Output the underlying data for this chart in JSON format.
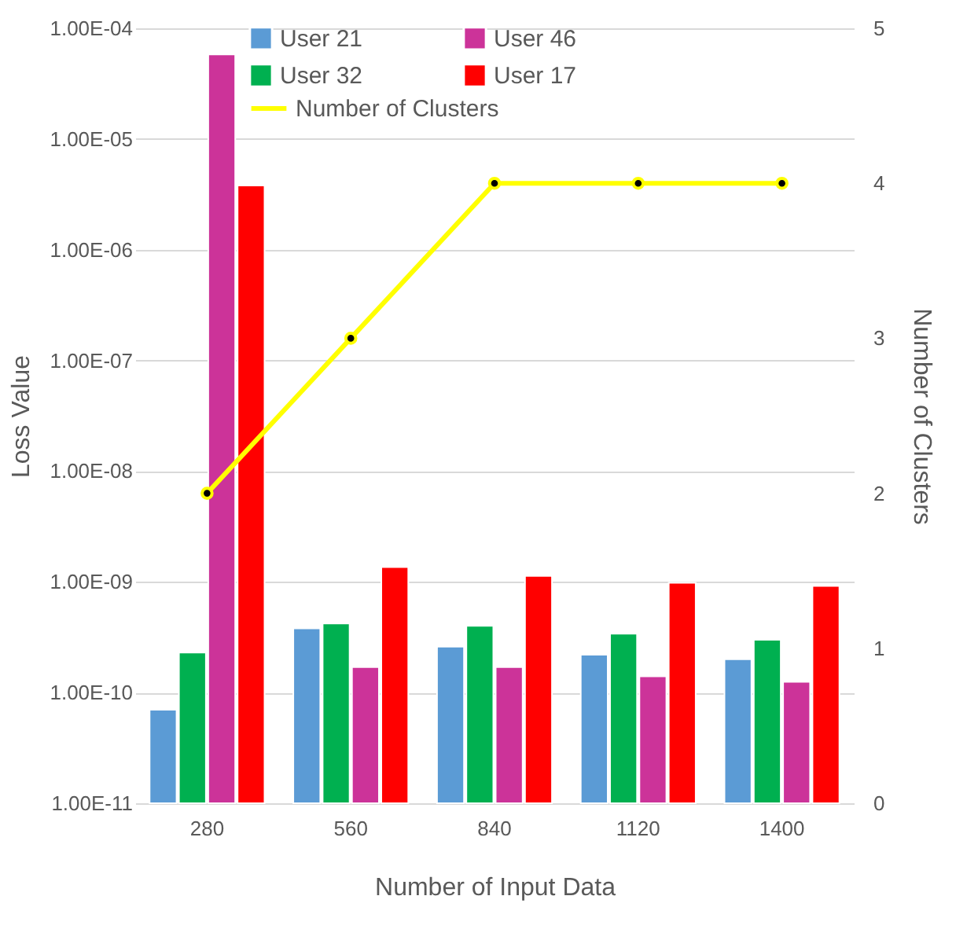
{
  "chart_data": {
    "type": "bar",
    "xlabel": "Number of Input Data",
    "ylabel": "Loss Value",
    "y2label": "Number of Clusters",
    "categories": [
      "280",
      "560",
      "840",
      "1120",
      "1400"
    ],
    "series": [
      {
        "name": "User 21",
        "color": "#5b9bd5",
        "values": [
          7e-11,
          3.8e-10,
          2.6e-10,
          2.2e-10,
          2e-10
        ]
      },
      {
        "name": "User 32",
        "color": "#00b050",
        "values": [
          2.3e-10,
          4.2e-10,
          4e-10,
          3.4e-10,
          3e-10
        ]
      },
      {
        "name": "User 46",
        "color": "#cc3399",
        "values": [
          5.8e-05,
          1.7e-10,
          1.7e-10,
          1.4e-10,
          1.25e-10
        ]
      },
      {
        "name": "User 17",
        "color": "#ff0000",
        "values": [
          3.8e-06,
          1.36e-09,
          1.13e-09,
          9.8e-10,
          9.2e-10
        ]
      },
      {
        "name": "Number of Clusters",
        "type": "line",
        "axis": "y2",
        "color": "#ffff00",
        "marker": "circle",
        "values": [
          2,
          3,
          4,
          4,
          4
        ]
      }
    ],
    "log": "y",
    "ylim": [
      1e-11,
      0.0001
    ],
    "yticks": [
      {
        "value": 1e-11,
        "label": "1.00E-11"
      },
      {
        "value": 1e-10,
        "label": "1.00E-10"
      },
      {
        "value": 1e-09,
        "label": "1.00E-09"
      },
      {
        "value": 1e-08,
        "label": "1.00E-08"
      },
      {
        "value": 1e-07,
        "label": "1.00E-07"
      },
      {
        "value": 1e-06,
        "label": "1.00E-06"
      },
      {
        "value": 1e-05,
        "label": "1.00E-05"
      },
      {
        "value": 0.0001,
        "label": "1.00E-04"
      }
    ],
    "y2lim": [
      0,
      5
    ],
    "y2ticks": [
      0,
      1,
      2,
      3,
      4,
      5
    ],
    "grid": "y",
    "legend": "top"
  }
}
